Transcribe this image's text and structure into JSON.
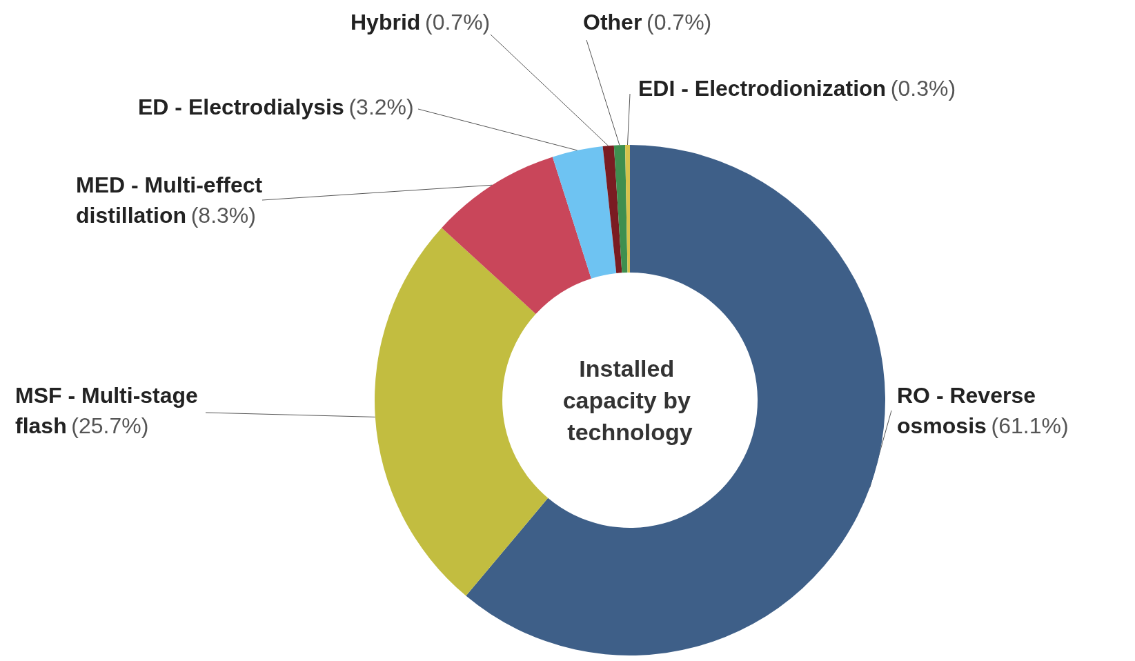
{
  "chart_data": {
    "type": "donut",
    "title": "Installed capacity by technology",
    "categories": [
      "RO - Reverse osmosis",
      "MSF - Multi-stage flash",
      "MED - Multi-effect distillation",
      "ED - Electrodialysis",
      "Hybrid",
      "Other",
      "EDI - Electrodionization"
    ],
    "values": [
      61.1,
      25.7,
      8.3,
      3.2,
      0.7,
      0.7,
      0.3
    ],
    "value_labels": [
      "(61.1%)",
      "(25.7%)",
      "(8.3%)",
      "(3.2%)",
      "(0.7%)",
      "(0.7%)",
      "(0.3%)"
    ],
    "colors": [
      "#3e5f88",
      "#c2bd40",
      "#c9465a",
      "#6ec3f2",
      "#7a1c22",
      "#3f8f4f",
      "#d6c24c"
    ]
  }
}
